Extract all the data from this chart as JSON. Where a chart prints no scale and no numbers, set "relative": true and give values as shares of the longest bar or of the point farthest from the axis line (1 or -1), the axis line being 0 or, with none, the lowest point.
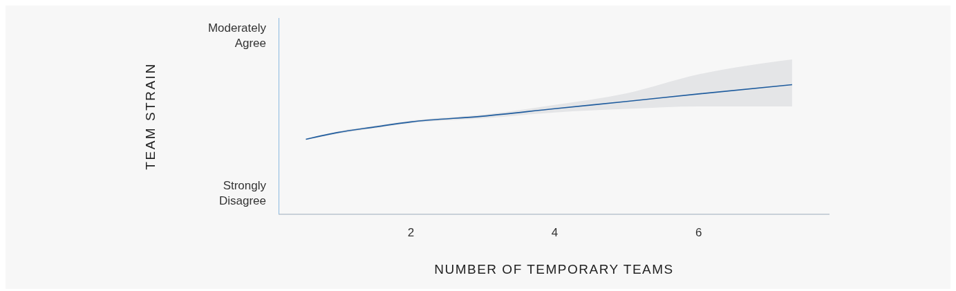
{
  "chart_data": {
    "type": "line",
    "relative": true,
    "xlabel": "NUMBER OF TEMPORARY TEAMS",
    "annotations": [
      "TEAM STRAIN",
      "Moderately Agree",
      "Strongly Disagree"
    ],
    "x": [
      0.54,
      1,
      1.5,
      2,
      3,
      4,
      5,
      6,
      7.3
    ],
    "series": [
      {
        "color": "#1f5c9e",
        "values": [
          0.579,
          0.633,
          0.674,
          0.713,
          0.757,
          0.815,
          0.871,
          0.929,
          1
        ],
        "lower": [
          0.574,
          0.623,
          0.664,
          0.703,
          0.74,
          0.786,
          0.813,
          0.832,
          0.832
        ],
        "upper": [
          0.584,
          0.642,
          0.684,
          0.723,
          0.769,
          0.844,
          0.934,
          1.08,
          1.195
        ]
      }
    ],
    "xlim": [
      0.16,
      7.82
    ],
    "xticks": [
      2,
      4,
      6
    ],
    "grid": false
  }
}
